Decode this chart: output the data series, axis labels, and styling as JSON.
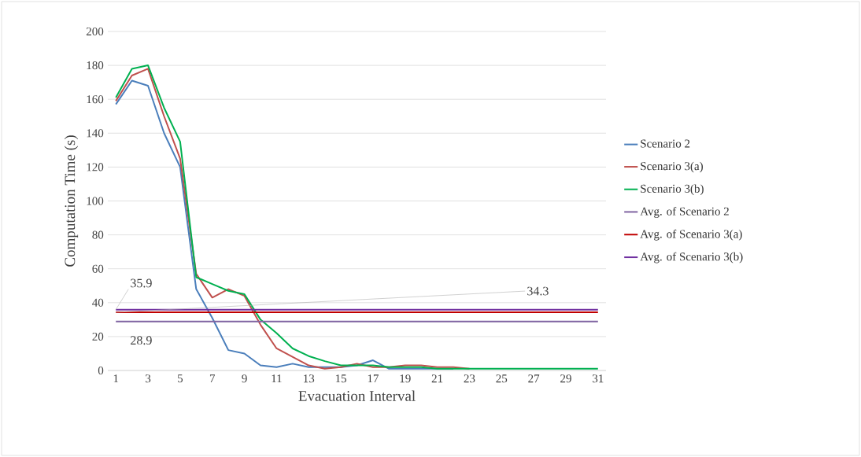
{
  "chart_data": {
    "type": "line",
    "xlabel": "Evacuation Interval",
    "ylabel": "Computation Time (s)",
    "x": [
      1,
      2,
      3,
      4,
      5,
      6,
      7,
      8,
      9,
      10,
      11,
      12,
      13,
      14,
      15,
      16,
      17,
      18,
      19,
      20,
      21,
      22,
      23,
      24,
      25,
      26,
      27,
      28,
      29,
      30,
      31
    ],
    "series": [
      {
        "name": "Scenario 2",
        "color": "#4a7ebb",
        "values": [
          157,
          171,
          168,
          140,
          120,
          48,
          31,
          12,
          10,
          3,
          2,
          4,
          2,
          2,
          2,
          3,
          6,
          1,
          1,
          1,
          1,
          1,
          null,
          null,
          null,
          null,
          null,
          null,
          null,
          null,
          null
        ]
      },
      {
        "name": "Scenario 3(a)",
        "color": "#c0504d",
        "values": [
          159,
          174,
          178,
          150,
          125,
          57,
          43,
          48,
          44,
          27,
          13,
          8,
          3,
          1,
          2,
          4,
          2,
          2,
          3,
          3,
          2,
          2,
          1,
          null,
          null,
          null,
          null,
          null,
          null,
          null,
          null
        ]
      },
      {
        "name": "Scenario 3(b)",
        "color": "#00b050",
        "values": [
          161,
          178,
          180,
          155,
          135,
          55,
          51,
          47,
          45,
          30,
          22,
          13,
          8.5,
          5.5,
          3,
          3,
          3,
          2,
          2,
          2,
          1,
          1,
          1,
          1,
          1,
          1,
          1,
          1,
          1,
          1,
          1
        ]
      },
      {
        "name": "Avg. of Scenario 2",
        "color": "#8064a2",
        "values": [
          28.9,
          28.9,
          28.9,
          28.9,
          28.9,
          28.9,
          28.9,
          28.9,
          28.9,
          28.9,
          28.9,
          28.9,
          28.9,
          28.9,
          28.9,
          28.9,
          28.9,
          28.9,
          28.9,
          28.9,
          28.9,
          28.9,
          28.9,
          28.9,
          28.9,
          28.9,
          28.9,
          28.9,
          28.9,
          28.9,
          28.9
        ],
        "value_labels": [
          "28.9",
          null,
          null,
          null,
          null,
          null,
          null,
          null,
          null,
          null,
          null,
          null,
          null,
          null,
          null,
          null,
          null,
          null,
          null,
          null,
          null,
          null,
          null,
          null,
          null,
          null,
          null,
          null,
          null,
          null,
          null
        ]
      },
      {
        "name": "Avg. of Scenario 3(a)",
        "color": "#c00000",
        "values": [
          34.3,
          34.3,
          34.3,
          34.3,
          34.3,
          34.3,
          34.3,
          34.3,
          34.3,
          34.3,
          34.3,
          34.3,
          34.3,
          34.3,
          34.3,
          34.3,
          34.3,
          34.3,
          34.3,
          34.3,
          34.3,
          34.3,
          34.3,
          34.3,
          34.3,
          34.3,
          34.3,
          34.3,
          34.3,
          34.3,
          34.3
        ],
        "value_labels": [
          "34.3",
          null,
          null,
          null,
          null,
          null,
          null,
          null,
          null,
          null,
          null,
          null,
          null,
          null,
          null,
          null,
          null,
          null,
          null,
          null,
          null,
          null,
          null,
          null,
          null,
          null,
          null,
          null,
          null,
          null,
          null
        ]
      },
      {
        "name": "Avg. of Scenario 3(b)",
        "color": "#7030a0",
        "values": [
          35.9,
          35.9,
          35.9,
          35.9,
          35.9,
          35.9,
          35.9,
          35.9,
          35.9,
          35.9,
          35.9,
          35.9,
          35.9,
          35.9,
          35.9,
          35.9,
          35.9,
          35.9,
          35.9,
          35.9,
          35.9,
          35.9,
          35.9,
          35.9,
          35.9,
          35.9,
          35.9,
          35.9,
          35.9,
          35.9,
          35.9
        ],
        "value_labels": [
          "35.9",
          null,
          null,
          null,
          null,
          null,
          null,
          null,
          null,
          null,
          null,
          null,
          null,
          null,
          null,
          null,
          null,
          null,
          null,
          null,
          null,
          null,
          null,
          null,
          null,
          null,
          null,
          null,
          null,
          null,
          null
        ]
      }
    ],
    "xlim": [
      0.5,
      31.5
    ],
    "xticks": [
      1,
      3,
      5,
      7,
      9,
      11,
      13,
      15,
      17,
      19,
      21,
      23,
      25,
      27,
      29,
      31
    ],
    "ylim": [
      0,
      200
    ],
    "yticks": [
      0,
      20,
      40,
      60,
      80,
      100,
      120,
      140,
      160,
      180,
      200
    ],
    "grid": "y",
    "legend": "right",
    "marker": "none",
    "line_style": "solid"
  }
}
